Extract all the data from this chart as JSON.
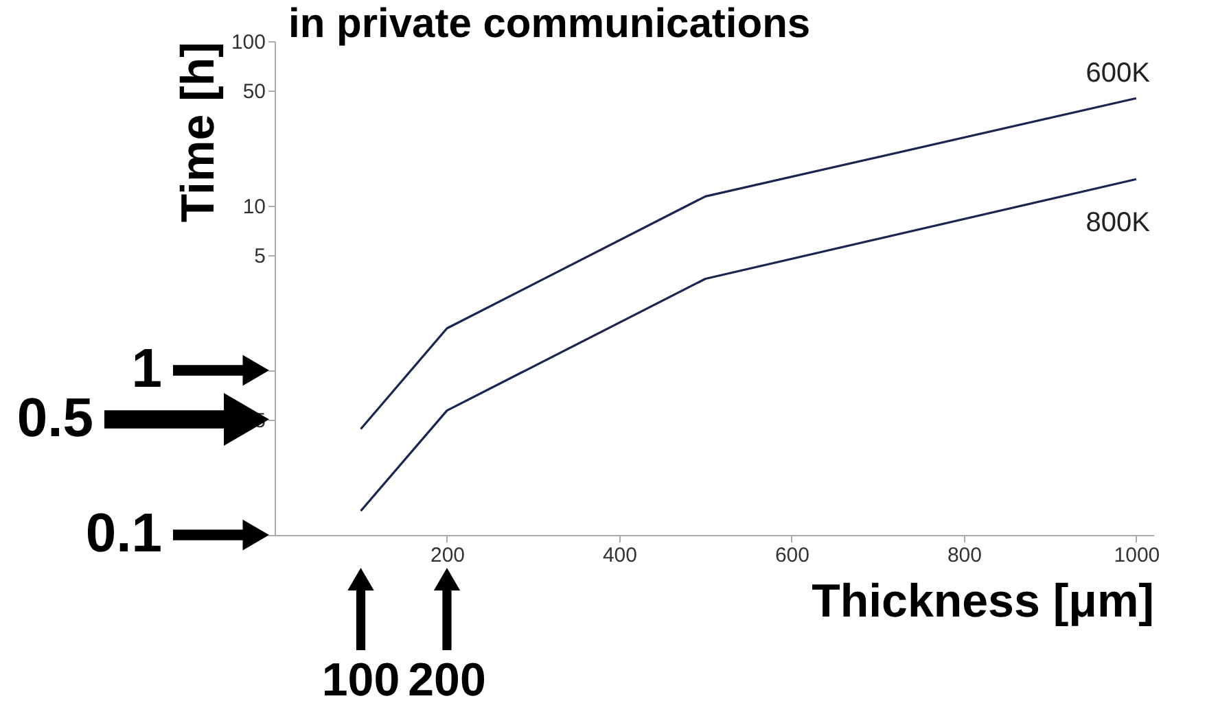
{
  "chart_data": {
    "type": "line",
    "title": "in private communications",
    "xlabel": "Thickness [μm]",
    "ylabel": "Time [h]",
    "x": [
      100,
      200,
      500,
      1000
    ],
    "series": [
      {
        "name": "600K",
        "color": "#1a2550",
        "values": [
          0.44,
          1.8,
          11.4,
          45
        ]
      },
      {
        "name": "800K",
        "color": "#1a2550",
        "values": [
          0.14,
          0.57,
          3.6,
          14.5
        ]
      }
    ],
    "xlim": [
      0,
      1020
    ],
    "xticks": [
      200,
      400,
      600,
      800,
      1000
    ],
    "ylim": [
      0.1,
      100
    ],
    "yticks": [
      100,
      50,
      10,
      5,
      {
        "value": 1,
        "label": null
      },
      0.5,
      {
        "value": 0.1,
        "label": null
      }
    ],
    "log": "y",
    "grid": false,
    "marker": "none",
    "line_style": "solid",
    "annotations": [
      "1",
      "0.5",
      "0.1",
      "100",
      "200"
    ]
  }
}
